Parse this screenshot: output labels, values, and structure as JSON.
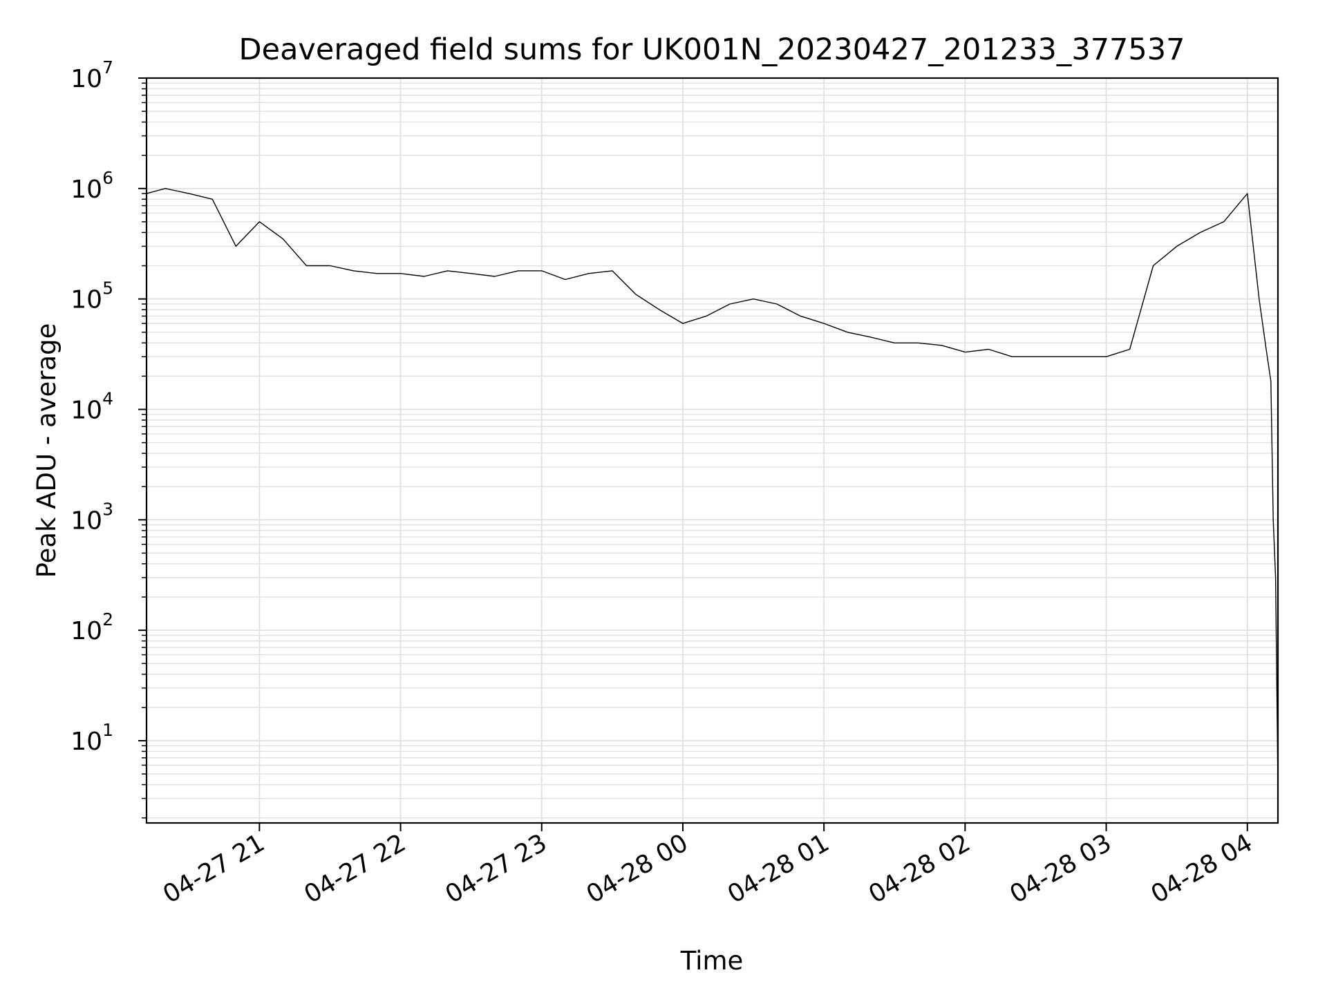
{
  "chart_data": {
    "type": "line",
    "title": "Deaveraged field sums for UK001N_20230427_201233_377537",
    "xlabel": "Time",
    "ylabel": "Peak ADU - average",
    "y_scale": "log",
    "ylim": [
      1.8,
      10000000
    ],
    "xlim": [
      "2023-04-27 20:12",
      "2023-04-28 04:13"
    ],
    "grid": "major and minor",
    "line_color": "#000000",
    "grid_color": "#e0e0e0",
    "x_ticks": [
      {
        "time": "2023-04-27 21:00",
        "label": "04-27 21"
      },
      {
        "time": "2023-04-27 22:00",
        "label": "04-27 22"
      },
      {
        "time": "2023-04-27 23:00",
        "label": "04-27 23"
      },
      {
        "time": "2023-04-28 00:00",
        "label": "04-28 00"
      },
      {
        "time": "2023-04-28 01:00",
        "label": "04-28 01"
      },
      {
        "time": "2023-04-28 02:00",
        "label": "04-28 02"
      },
      {
        "time": "2023-04-28 03:00",
        "label": "04-28 03"
      },
      {
        "time": "2023-04-28 04:00",
        "label": "04-28 04"
      }
    ],
    "y_ticks": [
      {
        "value": 10,
        "base": "10",
        "exp": "1"
      },
      {
        "value": 100,
        "base": "10",
        "exp": "2"
      },
      {
        "value": 1000,
        "base": "10",
        "exp": "3"
      },
      {
        "value": 10000,
        "base": "10",
        "exp": "4"
      },
      {
        "value": 100000,
        "base": "10",
        "exp": "5"
      },
      {
        "value": 1000000,
        "base": "10",
        "exp": "6"
      },
      {
        "value": 10000000,
        "base": "10",
        "exp": "7"
      }
    ],
    "series": [
      {
        "x": [
          "2023-04-27 20:12",
          "2023-04-27 20:20",
          "2023-04-27 20:30",
          "2023-04-27 20:40",
          "2023-04-27 20:50",
          "2023-04-27 21:00",
          "2023-04-27 21:10",
          "2023-04-27 21:20",
          "2023-04-27 21:30",
          "2023-04-27 21:40",
          "2023-04-27 21:50",
          "2023-04-27 22:00",
          "2023-04-27 22:10",
          "2023-04-27 22:20",
          "2023-04-27 22:30",
          "2023-04-27 22:40",
          "2023-04-27 22:50",
          "2023-04-27 23:00",
          "2023-04-27 23:10",
          "2023-04-27 23:20",
          "2023-04-27 23:30",
          "2023-04-27 23:40",
          "2023-04-27 23:50",
          "2023-04-28 00:00",
          "2023-04-28 00:10",
          "2023-04-28 00:20",
          "2023-04-28 00:30",
          "2023-04-28 00:40",
          "2023-04-28 00:50",
          "2023-04-28 01:00",
          "2023-04-28 01:10",
          "2023-04-28 01:20",
          "2023-04-28 01:30",
          "2023-04-28 01:40",
          "2023-04-28 01:50",
          "2023-04-28 02:00",
          "2023-04-28 02:10",
          "2023-04-28 02:20",
          "2023-04-28 02:30",
          "2023-04-28 02:40",
          "2023-04-28 02:50",
          "2023-04-28 03:00",
          "2023-04-28 03:10",
          "2023-04-28 03:20",
          "2023-04-28 03:30",
          "2023-04-28 03:40",
          "2023-04-28 03:50",
          "2023-04-28 04:00",
          "2023-04-28 04:05",
          "2023-04-28 04:08",
          "2023-04-28 04:10",
          "2023-04-28 04:11",
          "2023-04-28 04:12",
          "2023-04-28 04:13"
        ],
        "values": [
          900000,
          1000000,
          900000,
          800000,
          300000,
          500000,
          350000,
          200000,
          200000,
          180000,
          170000,
          170000,
          160000,
          180000,
          170000,
          160000,
          180000,
          180000,
          150000,
          170000,
          180000,
          110000,
          80000,
          60000,
          70000,
          90000,
          100000,
          90000,
          70000,
          60000,
          50000,
          45000,
          40000,
          40000,
          38000,
          33000,
          35000,
          30000,
          30000,
          30000,
          30000,
          30000,
          35000,
          200000,
          300000,
          400000,
          500000,
          900000,
          100000,
          35000,
          18000,
          1000,
          300,
          4
        ]
      }
    ]
  }
}
